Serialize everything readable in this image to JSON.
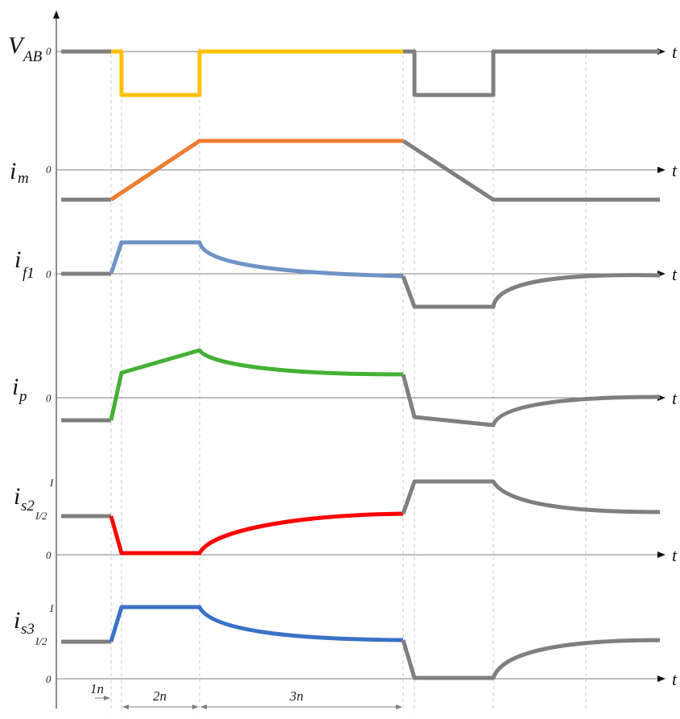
{
  "colors": {
    "gray": "#7f7f7f",
    "vab": "#ffc000",
    "im": "#ed7d31",
    "if1": "#6f93c6",
    "ip": "#44b034",
    "is2": "#ff0000",
    "is3": "#3a72c8"
  },
  "signals": {
    "vab": {
      "main": "V",
      "sub": "AB",
      "zero_label": "0",
      "axis_label": "t"
    },
    "im": {
      "main": "i",
      "sub": "m",
      "zero_label": "0",
      "axis_label": "t"
    },
    "if1": {
      "main": "i",
      "sub": "f1",
      "zero_label": "0",
      "axis_label": "t"
    },
    "ip": {
      "main": "i",
      "sub": "p",
      "zero_label": "0",
      "axis_label": "t"
    },
    "is2": {
      "main": "i",
      "sub": "s2",
      "top_label": "I",
      "half_label": "I/2",
      "zero_label": "0",
      "axis_label": "t"
    },
    "is3": {
      "main": "i",
      "sub": "s3",
      "top_label": "I",
      "half_label": "I/2",
      "zero_label": "0",
      "axis_label": "t"
    }
  },
  "intervals": {
    "i1": "1n",
    "i2": "2n",
    "i3": "3n"
  }
}
